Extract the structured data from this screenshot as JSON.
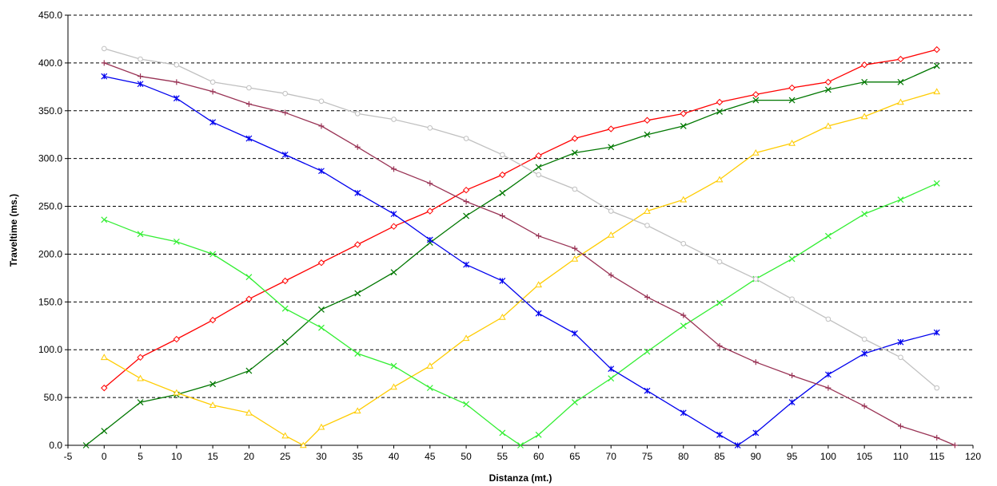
{
  "chart_data": {
    "type": "line",
    "title": "",
    "xlabel": "Distanza (mt.)",
    "ylabel": "Traveltime (ms.)",
    "xlim": [
      -5,
      120
    ],
    "ylim": [
      0,
      450
    ],
    "x_ticks": [
      -5,
      0,
      5,
      10,
      15,
      20,
      25,
      30,
      35,
      40,
      45,
      50,
      55,
      60,
      65,
      70,
      75,
      80,
      85,
      90,
      95,
      100,
      105,
      110,
      115,
      120
    ],
    "y_ticks": [
      0,
      50,
      100,
      150,
      200,
      250,
      300,
      350,
      400,
      450
    ],
    "y_tick_labels": [
      "0.0",
      "50.0",
      "100.0",
      "150.0",
      "200.0",
      "250.0",
      "300.0",
      "350.0",
      "400.0",
      "450.0"
    ],
    "grid": "horizontal-dashed",
    "legend": "none",
    "series": [
      {
        "color": "#ff0000",
        "marker": "diamond",
        "x": [
          0,
          5,
          10,
          15,
          20,
          25,
          30,
          35,
          40,
          45,
          50,
          55,
          60,
          65,
          70,
          75,
          80,
          85,
          90,
          95,
          100,
          105,
          110,
          115
        ],
        "y": [
          60,
          92,
          111,
          131,
          153,
          172,
          191,
          210,
          229,
          245,
          267,
          283,
          303,
          321,
          331,
          340,
          347,
          359,
          367,
          374,
          380,
          398,
          404,
          414
        ]
      },
      {
        "color": "#007700",
        "marker": "x",
        "x": [
          -2.5,
          0,
          5,
          10,
          15,
          20,
          25,
          30,
          35,
          40,
          45,
          50,
          55,
          60,
          65,
          70,
          75,
          80,
          85,
          90,
          95,
          100,
          105,
          110,
          115
        ],
        "y": [
          0,
          15,
          45,
          53,
          64,
          78,
          108,
          142,
          159,
          181,
          212,
          240,
          264,
          291,
          306,
          312,
          325,
          334,
          349,
          361,
          361,
          372,
          380,
          380,
          397
        ]
      },
      {
        "color": "#ffcc00",
        "marker": "triangle",
        "x": [
          0,
          5,
          10,
          15,
          20,
          25,
          27.5,
          30,
          35,
          40,
          45,
          50,
          55,
          60,
          65,
          70,
          75,
          80,
          85,
          90,
          95,
          100,
          105,
          110,
          115
        ],
        "y": [
          92,
          70,
          55,
          42,
          34,
          10,
          0,
          19,
          36,
          61,
          83,
          112,
          134,
          168,
          195,
          220,
          245,
          257,
          278,
          306,
          316,
          334,
          344,
          359,
          370
        ]
      },
      {
        "color": "#33ee33",
        "marker": "x",
        "x": [
          0,
          5,
          10,
          15,
          20,
          25,
          30,
          35,
          40,
          45,
          50,
          55,
          57.5,
          60,
          65,
          70,
          75,
          80,
          85,
          90,
          95,
          100,
          105,
          110,
          115
        ],
        "y": [
          236,
          221,
          213,
          200,
          176,
          143,
          123,
          96,
          83,
          60,
          43,
          13,
          0,
          11,
          45,
          70,
          98,
          125,
          149,
          174,
          195,
          219,
          242,
          257,
          274
        ]
      },
      {
        "color": "#0000ee",
        "marker": "star",
        "x": [
          0,
          5,
          10,
          15,
          20,
          25,
          30,
          35,
          40,
          45,
          50,
          55,
          60,
          65,
          70,
          75,
          80,
          85,
          87.5,
          90,
          95,
          100,
          105,
          110,
          115
        ],
        "y": [
          386,
          378,
          363,
          338,
          321,
          304,
          287,
          264,
          242,
          215,
          189,
          172,
          138,
          117,
          80,
          57,
          34,
          11,
          0,
          13,
          45,
          74,
          96,
          108,
          118
        ]
      },
      {
        "color": "#993355",
        "marker": "plus",
        "x": [
          0,
          5,
          10,
          15,
          20,
          25,
          30,
          35,
          40,
          45,
          50,
          55,
          60,
          65,
          70,
          75,
          80,
          85,
          90,
          95,
          100,
          105,
          110,
          115,
          117.5
        ],
        "y": [
          400,
          386,
          380,
          370,
          357,
          348,
          334,
          312,
          289,
          274,
          255,
          240,
          219,
          206,
          178,
          155,
          136,
          104,
          87,
          73,
          60,
          41,
          20,
          8,
          0
        ]
      },
      {
        "color": "#c0c0c0",
        "marker": "circle",
        "x": [
          0,
          5,
          10,
          15,
          20,
          25,
          30,
          35,
          40,
          45,
          50,
          55,
          60,
          65,
          70,
          75,
          80,
          85,
          90,
          95,
          100,
          105,
          110,
          115
        ],
        "y": [
          415,
          404,
          398,
          380,
          374,
          368,
          360,
          347,
          341,
          332,
          321,
          304,
          283,
          268,
          245,
          230,
          211,
          192,
          174,
          153,
          132,
          111,
          92,
          60
        ]
      }
    ]
  }
}
